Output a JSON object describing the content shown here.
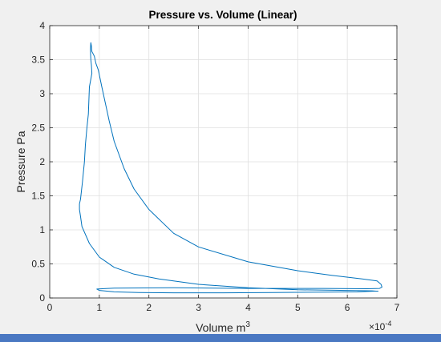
{
  "chart_data": {
    "type": "line",
    "title": "Pressure vs. Volume (Linear)",
    "xlabel": "Volume m",
    "xlabel_superscript": "3",
    "ylabel": "Pressure Pa",
    "x_exponent_label": "×10",
    "x_exponent_power": "-4",
    "xlim": [
      0,
      7
    ],
    "ylim": [
      0,
      4
    ],
    "xticks": [
      0,
      1,
      2,
      3,
      4,
      5,
      6,
      7
    ],
    "yticks": [
      0,
      0.5,
      1,
      1.5,
      2,
      2.5,
      3,
      3.5,
      4
    ],
    "xtick_labels": [
      "0",
      "1",
      "2",
      "3",
      "4",
      "5",
      "6",
      "7"
    ],
    "ytick_labels": [
      "0",
      "0.5",
      "1",
      "1.5",
      "2",
      "2.5",
      "3",
      "3.5",
      "4"
    ],
    "grid": true,
    "line_color": "#0072bd",
    "series": [
      {
        "x": [
          6.55,
          6.2,
          5.5,
          4.5,
          3.5,
          2.5,
          1.8,
          1.3,
          1.0,
          0.95,
          1.3,
          2.5,
          4.0,
          5.5,
          6.4,
          6.65,
          6.7,
          6.68,
          6.6,
          6.3,
          5.7,
          5.0,
          4.0,
          3.0,
          2.5,
          2.0,
          1.7,
          1.5,
          1.3,
          1.2,
          1.05,
          0.98,
          0.93,
          0.9,
          0.88,
          0.85,
          0.84,
          0.83,
          0.82,
          0.83,
          0.84,
          0.85,
          0.8,
          0.78,
          0.75,
          0.72,
          0.7,
          0.66,
          0.62,
          0.6,
          0.6,
          0.62,
          0.65,
          0.8,
          1.0,
          1.3,
          1.7,
          2.2,
          3.0,
          4.0,
          5.0,
          6.0,
          6.5,
          6.58,
          6.62,
          6.55
        ],
        "y": [
          0.1,
          0.09,
          0.085,
          0.08,
          0.075,
          0.075,
          0.08,
          0.09,
          0.11,
          0.13,
          0.145,
          0.15,
          0.14,
          0.14,
          0.135,
          0.14,
          0.16,
          0.2,
          0.25,
          0.28,
          0.33,
          0.4,
          0.53,
          0.75,
          0.95,
          1.3,
          1.6,
          1.9,
          2.3,
          2.6,
          3.1,
          3.35,
          3.45,
          3.55,
          3.58,
          3.62,
          3.7,
          3.75,
          3.65,
          3.5,
          3.42,
          3.3,
          3.1,
          2.7,
          2.5,
          2.25,
          2.0,
          1.7,
          1.45,
          1.38,
          1.3,
          1.2,
          1.05,
          0.8,
          0.6,
          0.45,
          0.35,
          0.28,
          0.2,
          0.15,
          0.12,
          0.11,
          0.105,
          0.1,
          0.1,
          0.1
        ]
      }
    ]
  }
}
